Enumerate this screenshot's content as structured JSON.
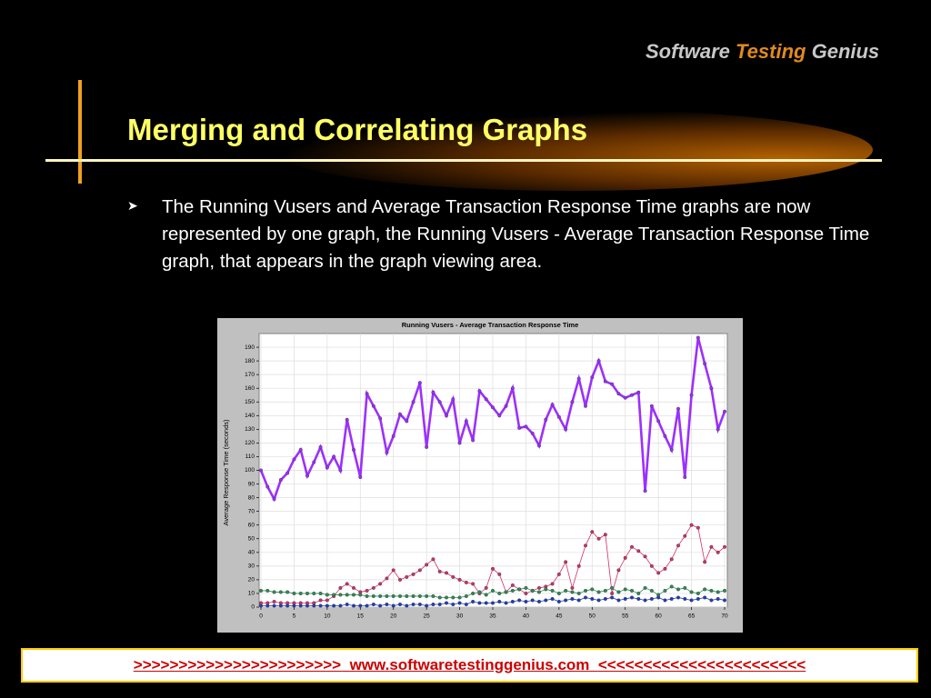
{
  "logo": {
    "first": "Software",
    "second": "Testing",
    "third": "Genius"
  },
  "slide": {
    "title": "Merging and Correlating Graphs",
    "bullet": "The Running Vusers and Average Transaction Response Time graphs are now represented by one graph, the Running Vusers - Average Transaction Response Time graph, that appears in the graph viewing area."
  },
  "footer": {
    "left": ">>>>>>>>>>>>>>>>>>>>>>>",
    "url": "www.softwaretestinggenius.com",
    "right": "<<<<<<<<<<<<<<<<<<<<<<<"
  },
  "chart_data": {
    "type": "line",
    "title": "Running Vusers - Average Transaction Response Time",
    "y_label": "Average Response Time (seconds)",
    "x": [
      0,
      1,
      2,
      3,
      4,
      5,
      6,
      7,
      8,
      9,
      10,
      11,
      12,
      13,
      14,
      15,
      16,
      17,
      18,
      19,
      20,
      21,
      22,
      23,
      24,
      25,
      26,
      27,
      28,
      29,
      30,
      31,
      32,
      33,
      34,
      35,
      36,
      37,
      38,
      39,
      40,
      41,
      42,
      43,
      44,
      45,
      46,
      47,
      48,
      49,
      50,
      51,
      52,
      53,
      54,
      55,
      56,
      57,
      58,
      59,
      60,
      61,
      62,
      63,
      64,
      65,
      66,
      67,
      68,
      69,
      70
    ],
    "xlim": [
      0,
      70
    ],
    "xticks": [
      0,
      5,
      10,
      15,
      20,
      25,
      30,
      35,
      40,
      45,
      50,
      55,
      60,
      65,
      70
    ],
    "ylim": [
      0,
      200
    ],
    "yticks": [
      0,
      10,
      20,
      30,
      40,
      50,
      60,
      70,
      80,
      90,
      100,
      110,
      120,
      130,
      140,
      150,
      160,
      170,
      180,
      190
    ],
    "grid": true,
    "series": [
      {
        "color": "#9b30ff",
        "values": [
          100,
          88,
          79,
          93,
          98,
          108,
          115,
          96,
          106,
          117,
          102,
          110,
          100,
          137,
          115,
          95,
          156,
          147,
          138,
          113,
          125,
          141,
          136,
          150,
          164,
          117,
          157,
          150,
          140,
          152,
          120,
          136,
          122,
          158,
          152,
          146,
          140,
          147,
          160,
          131,
          132,
          127,
          118,
          137,
          148,
          139,
          130,
          150,
          167,
          147,
          168,
          180,
          165,
          163,
          156,
          153,
          155,
          157,
          85,
          147,
          136,
          125,
          115,
          145,
          95,
          155,
          197,
          178,
          160,
          130,
          143
        ]
      },
      {
        "color": "#d0306a",
        "values": [
          3,
          3,
          4,
          3,
          3,
          3,
          3,
          3,
          3,
          5,
          5,
          8,
          14,
          17,
          14,
          11,
          12,
          14,
          17,
          21,
          27,
          20,
          22,
          24,
          27,
          31,
          35,
          26,
          25,
          22,
          20,
          18,
          17,
          10,
          14,
          28,
          24,
          11,
          16,
          13,
          10,
          12,
          14,
          15,
          17,
          24,
          33,
          14,
          30,
          45,
          55,
          50,
          53,
          10,
          27,
          36,
          44,
          41,
          37,
          30,
          25,
          28,
          35,
          45,
          52,
          60,
          58,
          33,
          44,
          40,
          44
        ]
      },
      {
        "color": "#2e8b57",
        "values": [
          12,
          12,
          11,
          11,
          11,
          10,
          10,
          10,
          10,
          10,
          9,
          9,
          9,
          9,
          9,
          9,
          8,
          8,
          8,
          8,
          8,
          8,
          8,
          8,
          8,
          8,
          8,
          7,
          7,
          7,
          7,
          8,
          10,
          11,
          9,
          12,
          10,
          11,
          12,
          13,
          14,
          12,
          11,
          13,
          12,
          10,
          12,
          11,
          10,
          12,
          13,
          11,
          12,
          14,
          11,
          13,
          12,
          10,
          14,
          12,
          9,
          12,
          15,
          13,
          14,
          11,
          10,
          13,
          12,
          11,
          12
        ]
      },
      {
        "color": "#1e3cbe",
        "values": [
          1,
          1,
          1,
          1,
          1,
          1,
          1,
          1,
          1,
          1,
          1,
          1,
          1,
          2,
          1,
          1,
          1,
          2,
          1,
          2,
          1,
          2,
          1,
          2,
          2,
          1,
          2,
          2,
          3,
          2,
          3,
          2,
          4,
          3,
          3,
          3,
          4,
          3,
          4,
          5,
          4,
          5,
          4,
          5,
          6,
          4,
          5,
          6,
          5,
          7,
          6,
          5,
          6,
          7,
          5,
          6,
          7,
          6,
          5,
          6,
          7,
          5,
          6,
          7,
          6,
          5,
          6,
          7,
          5,
          6,
          5
        ]
      }
    ]
  }
}
